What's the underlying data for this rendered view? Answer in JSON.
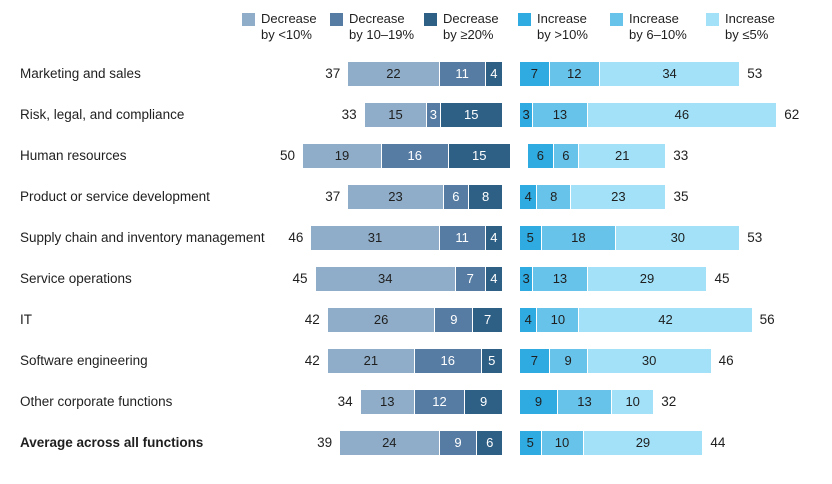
{
  "chart_data": {
    "type": "bar",
    "variant": "horizontal-diverging-stacked",
    "unit": "percent of respondents",
    "grid": false,
    "legend_position": "top",
    "legend_decrease": [
      {
        "label_line1": "Decrease",
        "label_line2": "by <10%",
        "color": "#8FADC8",
        "text_color": "#1f1f1f"
      },
      {
        "label_line1": "Decrease",
        "label_line2": "by 10–19%",
        "color": "#567CA3",
        "text_color": "#ffffff"
      },
      {
        "label_line1": "Decrease",
        "label_line2": "by ≥20%",
        "color": "#2E5F85",
        "text_color": "#ffffff"
      }
    ],
    "legend_increase": [
      {
        "label_line1": "Increase",
        "label_line2": "by >10%",
        "color": "#2FABE1",
        "text_color": "#1f1f1f"
      },
      {
        "label_line1": "Increase",
        "label_line2": "by 6–10%",
        "color": "#67C3EA",
        "text_color": "#1f1f1f"
      },
      {
        "label_line1": "Increase",
        "label_line2": "by ≤5%",
        "color": "#A2E1F8",
        "text_color": "#1f1f1f"
      }
    ],
    "rows": [
      {
        "label": "Marketing and sales",
        "bold": false,
        "decrease_total": 37,
        "decrease": [
          22,
          11,
          4
        ],
        "increase": [
          7,
          12,
          34
        ],
        "increase_total": 53
      },
      {
        "label": "Risk, legal, and compliance",
        "bold": false,
        "decrease_total": 33,
        "decrease": [
          15,
          3,
          15
        ],
        "increase": [
          3,
          13,
          46
        ],
        "increase_total": 62
      },
      {
        "label": "Human resources",
        "bold": false,
        "decrease_total": 50,
        "decrease": [
          19,
          16,
          15
        ],
        "increase": [
          6,
          6,
          21
        ],
        "increase_total": 33
      },
      {
        "label": "Product or service development",
        "bold": false,
        "decrease_total": 37,
        "decrease": [
          23,
          6,
          8
        ],
        "increase": [
          4,
          8,
          23
        ],
        "increase_total": 35
      },
      {
        "label": "Supply chain and inventory management",
        "bold": false,
        "decrease_total": 46,
        "decrease": [
          31,
          11,
          4
        ],
        "increase": [
          5,
          18,
          30
        ],
        "increase_total": 53
      },
      {
        "label": "Service operations",
        "bold": false,
        "decrease_total": 45,
        "decrease": [
          34,
          7,
          4
        ],
        "increase": [
          3,
          13,
          29
        ],
        "increase_total": 45
      },
      {
        "label": "IT",
        "bold": false,
        "decrease_total": 42,
        "decrease": [
          26,
          9,
          7
        ],
        "increase": [
          4,
          10,
          42
        ],
        "increase_total": 56
      },
      {
        "label": "Software engineering",
        "bold": false,
        "decrease_total": 42,
        "decrease": [
          21,
          16,
          5
        ],
        "increase": [
          7,
          9,
          30
        ],
        "increase_total": 46
      },
      {
        "label": "Other corporate functions",
        "bold": false,
        "decrease_total": 34,
        "decrease": [
          13,
          12,
          9
        ],
        "increase": [
          9,
          13,
          10
        ],
        "increase_total": 32
      },
      {
        "label": "Average across all functions",
        "bold": true,
        "decrease_total": 39,
        "decrease": [
          24,
          9,
          6
        ],
        "increase": [
          5,
          10,
          29
        ],
        "increase_total": 44
      }
    ]
  }
}
